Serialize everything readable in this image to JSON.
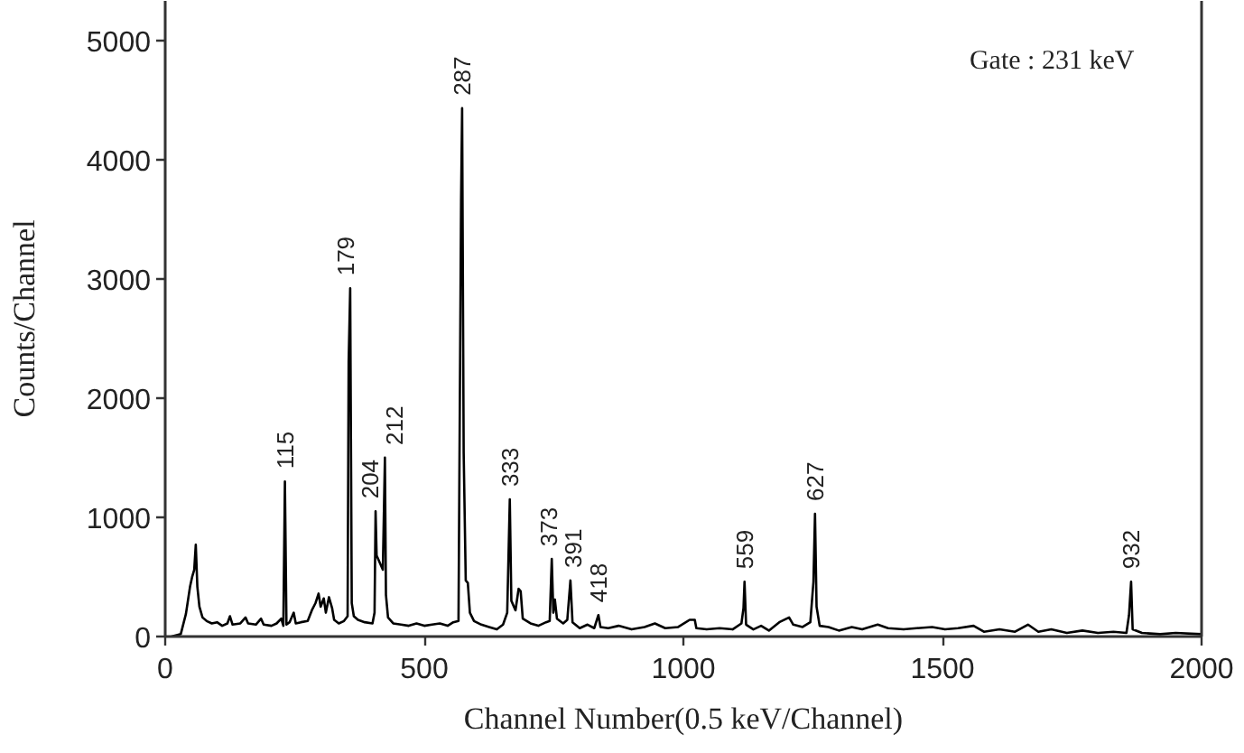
{
  "chart_data": {
    "type": "line",
    "xlabel": "Channel Number(0.5 keV/Channel)",
    "ylabel": "Counts/Channel",
    "x": [
      12,
      30,
      40,
      48,
      52,
      56,
      59,
      62,
      66,
      72,
      80,
      90,
      100,
      110,
      120,
      125,
      130,
      145,
      155,
      160,
      175,
      185,
      190,
      205,
      215,
      224,
      228,
      231,
      234,
      240,
      248,
      252,
      262,
      275,
      283,
      290,
      296,
      300,
      306,
      310,
      316,
      322,
      326,
      335,
      345,
      352,
      354,
      357,
      360,
      364,
      372,
      385,
      400,
      404,
      406,
      408,
      412,
      416,
      420,
      424,
      426,
      430,
      440,
      455,
      470,
      485,
      500,
      515,
      530,
      545,
      556,
      566,
      571,
      573,
      576,
      580,
      584,
      588,
      596,
      610,
      625,
      640,
      652,
      660,
      665,
      668,
      676,
      682,
      686,
      690,
      705,
      720,
      735,
      742,
      746,
      749,
      752,
      756,
      768,
      776,
      782,
      786,
      800,
      815,
      828,
      836,
      840,
      855,
      875,
      900,
      925,
      945,
      965,
      990,
      1012,
      1022,
      1025,
      1045,
      1070,
      1095,
      1112,
      1116,
      1118,
      1121,
      1135,
      1150,
      1165,
      1185,
      1204,
      1212,
      1230,
      1245,
      1251,
      1254,
      1257,
      1263,
      1280,
      1300,
      1325,
      1345,
      1375,
      1395,
      1425,
      1450,
      1480,
      1505,
      1530,
      1560,
      1580,
      1610,
      1640,
      1665,
      1685,
      1710,
      1740,
      1770,
      1800,
      1830,
      1855,
      1860,
      1864,
      1867,
      1885,
      1920,
      1950,
      2000
    ],
    "series": [
      {
        "color": "#000000",
        "values": [
          0,
          20,
          190,
          420,
          500,
          560,
          770,
          420,
          250,
          160,
          130,
          110,
          120,
          90,
          110,
          170,
          100,
          110,
          160,
          110,
          100,
          150,
          100,
          90,
          110,
          150,
          90,
          1300,
          100,
          120,
          200,
          110,
          120,
          130,
          220,
          280,
          360,
          250,
          320,
          200,
          330,
          240,
          140,
          110,
          130,
          170,
          2300,
          2920,
          280,
          170,
          140,
          120,
          110,
          200,
          1050,
          680,
          640,
          600,
          560,
          1500,
          350,
          160,
          110,
          100,
          90,
          110,
          90,
          100,
          110,
          90,
          120,
          130,
          3660,
          4430,
          1540,
          470,
          450,
          200,
          130,
          100,
          80,
          60,
          100,
          200,
          1150,
          300,
          220,
          400,
          380,
          150,
          110,
          90,
          120,
          130,
          650,
          200,
          310,
          150,
          110,
          140,
          470,
          120,
          70,
          100,
          70,
          180,
          80,
          70,
          90,
          60,
          80,
          110,
          70,
          80,
          140,
          140,
          70,
          60,
          70,
          60,
          110,
          240,
          460,
          100,
          60,
          90,
          50,
          120,
          160,
          100,
          80,
          120,
          460,
          1030,
          250,
          90,
          80,
          50,
          80,
          60,
          100,
          70,
          60,
          70,
          80,
          60,
          70,
          90,
          40,
          60,
          40,
          100,
          40,
          60,
          30,
          50,
          30,
          40,
          30,
          180,
          460,
          60,
          30,
          20,
          30,
          20
        ]
      }
    ],
    "xlim": [
      0,
      2000
    ],
    "ylim": [
      0,
      5330
    ],
    "xticks": [
      0,
      500,
      1000,
      1500,
      2000
    ],
    "yticks": [
      0,
      1000,
      2000,
      3000,
      4000,
      5000
    ],
    "line_style": "solid",
    "annotations": [
      "Gate : 231 keV",
      {
        "text": "115",
        "x": 231,
        "y": 1300
      },
      {
        "text": "179",
        "x": 357,
        "y": 2920
      },
      {
        "text": "204",
        "x": 406,
        "y": 1050
      },
      {
        "text": "212",
        "x": 424,
        "y": 1500
      },
      {
        "text": "287",
        "x": 573,
        "y": 4430
      },
      {
        "text": "333",
        "x": 665,
        "y": 1150
      },
      {
        "text": "373",
        "x": 746,
        "y": 650
      },
      {
        "text": "391",
        "x": 782,
        "y": 470
      },
      {
        "text": "418",
        "x": 836,
        "y": 180
      },
      {
        "text": "559",
        "x": 1118,
        "y": 460
      },
      {
        "text": "627",
        "x": 1254,
        "y": 1030
      },
      {
        "text": "932",
        "x": 1864,
        "y": 460
      }
    ]
  }
}
